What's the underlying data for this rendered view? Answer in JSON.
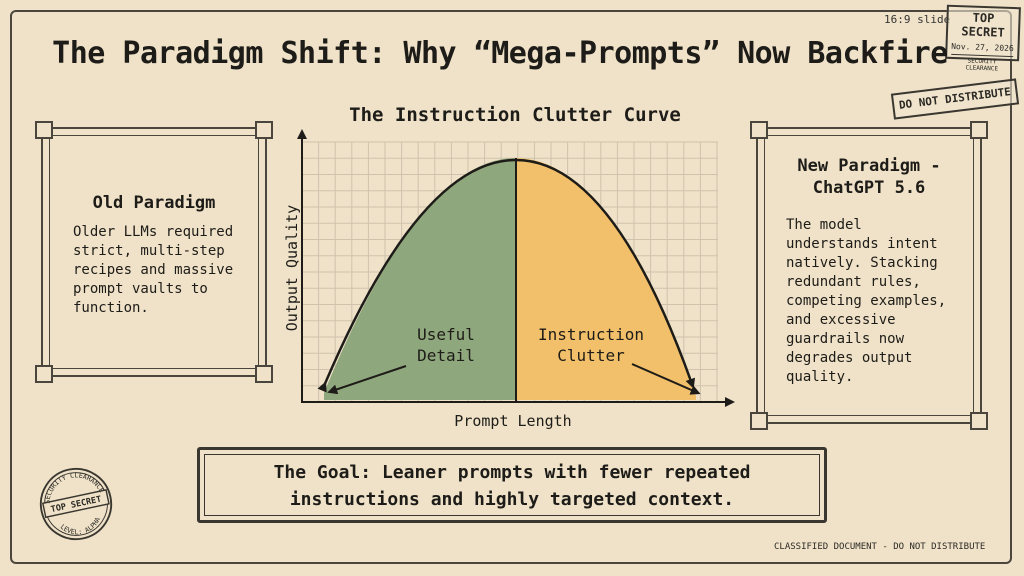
{
  "slide_tag": "16:9 slide",
  "title": "The Paradigm Shift: Why “Mega-Prompts” Now Backfire",
  "stamps": {
    "top_secret": "TOP SECRET",
    "date": "Nov. 27, 2026",
    "clearance": "SECURITY CLEARANCE",
    "do_not_distribute": "DO NOT DISTRIBUTE"
  },
  "old_paradigm": {
    "heading": "Old Paradigm",
    "body": "Older LLMs required strict, multi-step recipes and massive prompt vaults to function."
  },
  "new_paradigm": {
    "heading_line1": "New Paradigm -",
    "heading_line2": "ChatGPT 5.6",
    "body": "The model understands intent natively. Stacking redundant rules, competing examples, and excessive guardrails now degrades output quality."
  },
  "chart": {
    "title": "The Instruction Clutter Curve",
    "x_axis_label": "Prompt Length",
    "y_axis_label": "Output Quality",
    "left_region_line1": "Useful",
    "left_region_line2": "Detail",
    "right_region_line1": "Instruction",
    "right_region_line2": "Clutter",
    "colors": {
      "useful": "#8fa77d",
      "clutter": "#f2c06a",
      "grid": "#cfc3ad"
    }
  },
  "goal": {
    "line1": "The Goal: Leaner prompts with fewer repeated",
    "line2": "instructions and highly targeted context."
  },
  "seal": {
    "top": "SECURITY CLEARANCE",
    "middle": "TOP SECRET",
    "bottom": "LEVEL: ALPHA"
  },
  "footer": "CLASSIFIED DOCUMENT - DO NOT DISTRIBUTE"
}
